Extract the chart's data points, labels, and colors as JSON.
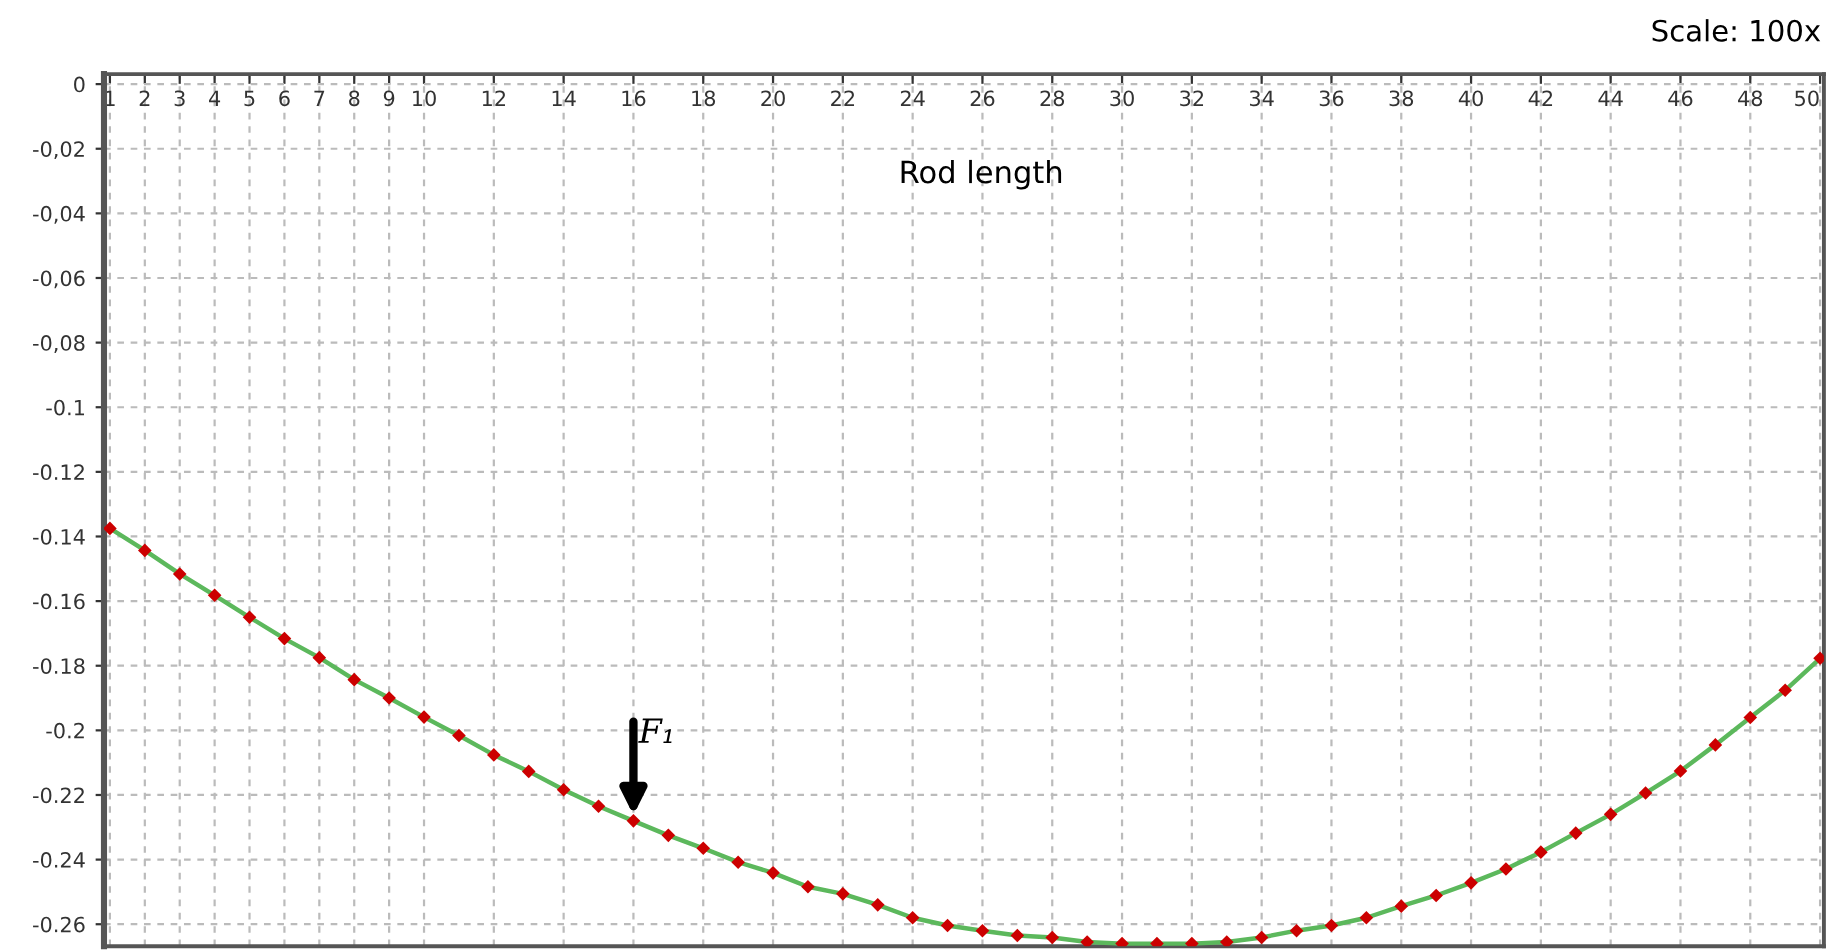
{
  "chart_data": {
    "type": "line",
    "xlabel": "Rod length",
    "annotations": [
      "Scale: 100x",
      {
        "text": "F₁",
        "x": 16,
        "y": -0.228
      }
    ],
    "x": [
      1,
      2,
      3,
      4,
      5,
      6,
      7,
      8,
      9,
      10,
      11,
      12,
      13,
      14,
      15,
      16,
      17,
      18,
      19,
      20,
      21,
      22,
      23,
      24,
      25,
      26,
      27,
      28,
      29,
      30,
      31,
      32,
      33,
      34,
      35,
      36,
      37,
      38,
      39,
      40,
      41,
      42,
      43,
      44,
      45,
      46,
      47,
      48,
      49,
      50
    ],
    "series": [
      {
        "color": "#5cb85c",
        "colors": [
          "#cc0000",
          "#cc0000",
          "#cc0000",
          "#cc0000",
          "#cc0000",
          "#cc0000",
          "#cc0000",
          "#cc0000",
          "#cc0000",
          "#cc0000",
          "#cc0000",
          "#cc0000",
          "#cc0000",
          "#cc0000",
          "#cc0000",
          "#cc0000",
          "#cc0000",
          "#cc0000",
          "#cc0000",
          "#cc0000",
          "#cc0000",
          "#cc0000",
          "#cc0000",
          "#cc0000",
          "#cc0000",
          "#cc0000",
          "#cc0000",
          "#cc0000",
          "#cc0000",
          "#cc0000",
          "#cc0000",
          "#cc0000",
          "#cc0000",
          "#cc0000",
          "#cc0000",
          "#cc0000",
          "#cc0000",
          "#cc0000",
          "#cc0000",
          "#cc0000",
          "#cc0000",
          "#cc0000",
          "#cc0000",
          "#cc0000",
          "#cc0000",
          "#cc0000",
          "#cc0000",
          "#cc0000",
          "#cc0000",
          "#cc0000"
        ],
        "values": [
          -0.1375,
          -0.1443,
          -0.1516,
          -0.1582,
          -0.165,
          -0.1716,
          -0.1775,
          -0.1843,
          -0.19,
          -0.1959,
          -0.2016,
          -0.2076,
          -0.2127,
          -0.2184,
          -0.2235,
          -0.228,
          -0.2325,
          -0.2365,
          -0.2408,
          -0.2441,
          -0.2484,
          -0.2506,
          -0.254,
          -0.258,
          -0.2604,
          -0.262,
          -0.2635,
          -0.2641,
          -0.2655,
          -0.266,
          -0.266,
          -0.266,
          -0.2655,
          -0.2641,
          -0.262,
          -0.2604,
          -0.258,
          -0.2544,
          -0.2511,
          -0.2472,
          -0.2429,
          -0.2377,
          -0.2318,
          -0.226,
          -0.2194,
          -0.2126,
          -0.2045,
          -0.196,
          -0.1876,
          -0.1777
        ]
      }
    ],
    "xlim": [
      0.83,
      50.11
    ],
    "ylim": [
      -0.2668,
      0.0031
    ],
    "xticks": [
      1,
      2,
      3,
      4,
      5,
      6,
      7,
      8,
      9,
      10,
      12,
      14,
      16,
      18,
      20,
      22,
      24,
      26,
      28,
      30,
      32,
      34,
      36,
      38,
      40,
      42,
      44,
      46,
      48,
      50
    ],
    "yticks": [
      0,
      {
        "value": -0.02,
        "label": "-0,02"
      },
      {
        "value": -0.04,
        "label": "-0,04"
      },
      {
        "value": -0.06,
        "label": "-0,06"
      },
      {
        "value": -0.08,
        "label": "-0,08"
      },
      -0.1,
      -0.12,
      -0.14,
      -0.16,
      -0.18,
      -0.2,
      -0.22,
      -0.24,
      -0.26
    ],
    "grid": true,
    "marker": "diamond",
    "line_style": "solid"
  }
}
